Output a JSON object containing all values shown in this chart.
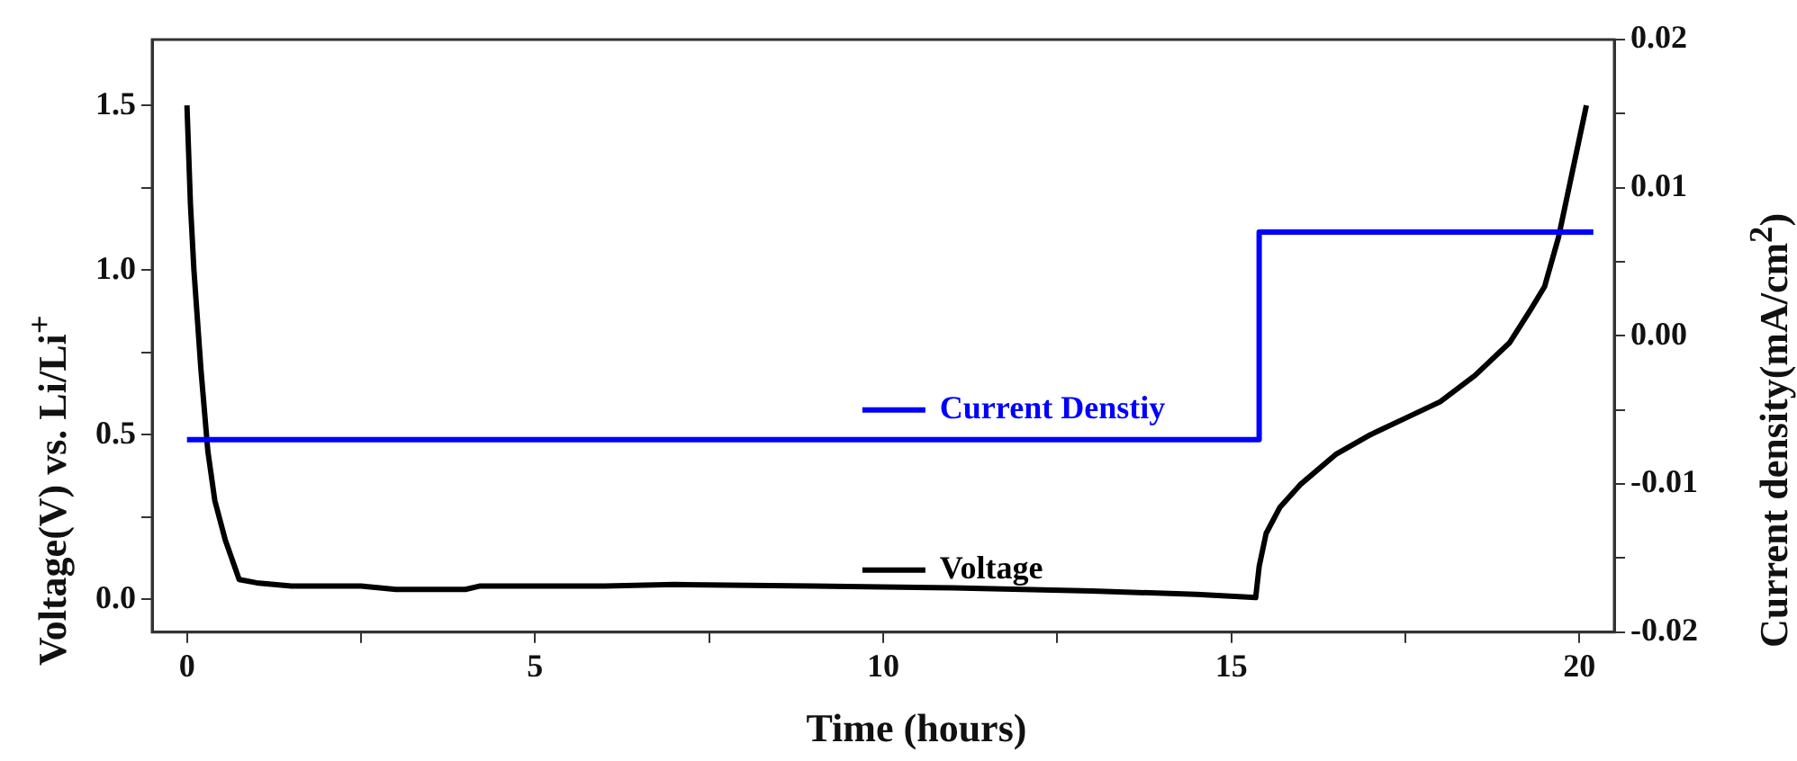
{
  "chart_data": {
    "type": "line",
    "xlabel": "Time (hours)",
    "ylabel": "Voltage(V) vs. Li/Li$^{+}$",
    "y2label": "Current density(mA/cm$^{2}$)",
    "xlim": [
      -0.5,
      20.5
    ],
    "ylim": [
      -0.1,
      1.7
    ],
    "y2lim": [
      -0.02,
      0.02
    ],
    "xticks": [
      0,
      {
        "value": 2.5,
        "label": null
      },
      5,
      {
        "value": 7.5,
        "label": null
      },
      10,
      {
        "value": 12.5,
        "label": null
      },
      15,
      {
        "value": 17.5,
        "label": null
      },
      20
    ],
    "yticks": [
      {
        "value": 0,
        "label": "0.0"
      },
      {
        "value": 0.25,
        "label": null
      },
      0.5,
      {
        "value": 0.75,
        "label": null
      },
      {
        "value": 1,
        "label": "1.0"
      },
      {
        "value": 1.25,
        "label": null
      },
      1.5
    ],
    "y2ticks": [
      -0.02,
      {
        "value": -0.015,
        "label": null
      },
      -0.01,
      {
        "value": -0.005,
        "label": null
      },
      {
        "value": 0,
        "label": "0.00"
      },
      {
        "value": 0.005,
        "label": null
      },
      0.01,
      {
        "value": 0.015,
        "label": null
      },
      0.02
    ],
    "grid": false,
    "legend": "center",
    "marker": "none",
    "series": [
      {
        "name": "Current Denstiy",
        "type": "step",
        "axis": "y2",
        "color": "#0000ff",
        "x": [
          0,
          15.4,
          20.2
        ],
        "values": [
          -0.007,
          0.007,
          0.007
        ]
      },
      {
        "name": "Voltage",
        "color": "#000000",
        "x": [
          0,
          0.05,
          0.1,
          0.2,
          0.3,
          0.4,
          0.55,
          0.75,
          1,
          1.5,
          2.5,
          3,
          3.5,
          4,
          4.2,
          6,
          7,
          9,
          11,
          13,
          14.5,
          15.35,
          15.4,
          15.5,
          15.7,
          16,
          16.5,
          17,
          17.5,
          18,
          18.5,
          19,
          19.3,
          19.5,
          19.7,
          19.9,
          20.1
        ],
        "values": [
          1.5,
          1.2,
          1.0,
          0.7,
          0.45,
          0.3,
          0.18,
          0.06,
          0.05,
          0.04,
          0.04,
          0.03,
          0.03,
          0.03,
          0.04,
          0.04,
          0.045,
          0.04,
          0.035,
          0.025,
          0.015,
          0.005,
          0.1,
          0.2,
          0.28,
          0.35,
          0.44,
          0.5,
          0.55,
          0.6,
          0.68,
          0.78,
          0.88,
          0.95,
          1.1,
          1.3,
          1.5
        ]
      }
    ]
  }
}
